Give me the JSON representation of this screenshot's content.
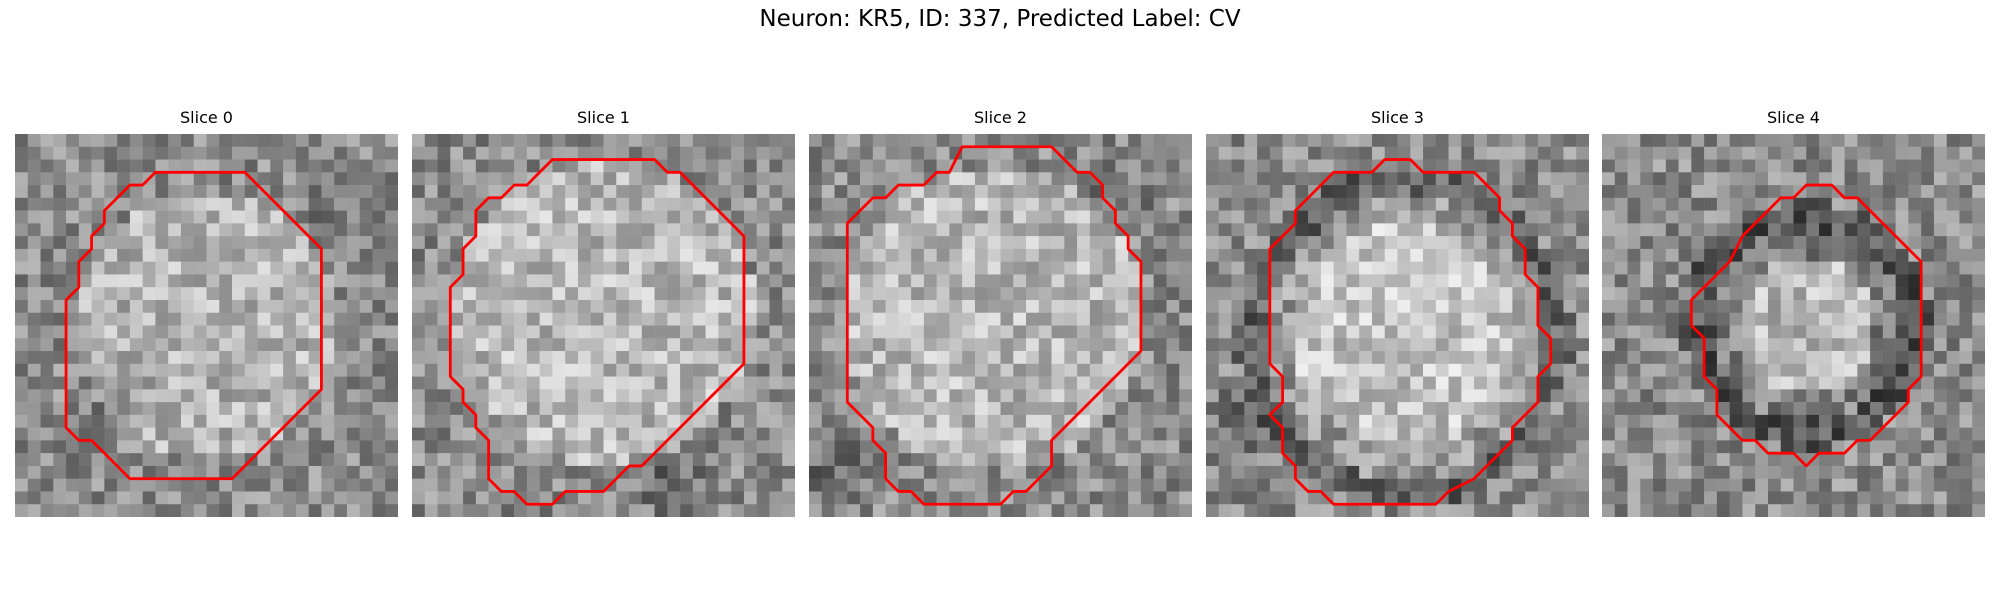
{
  "title": "Neuron: KR5, ID: 337, Predicted Label: CV",
  "contour_color": "#ff0000",
  "panels": [
    {
      "title": "Slice 0"
    },
    {
      "title": "Slice 1"
    },
    {
      "title": "Slice 2"
    },
    {
      "title": "Slice 3"
    },
    {
      "title": "Slice 4"
    }
  ]
}
